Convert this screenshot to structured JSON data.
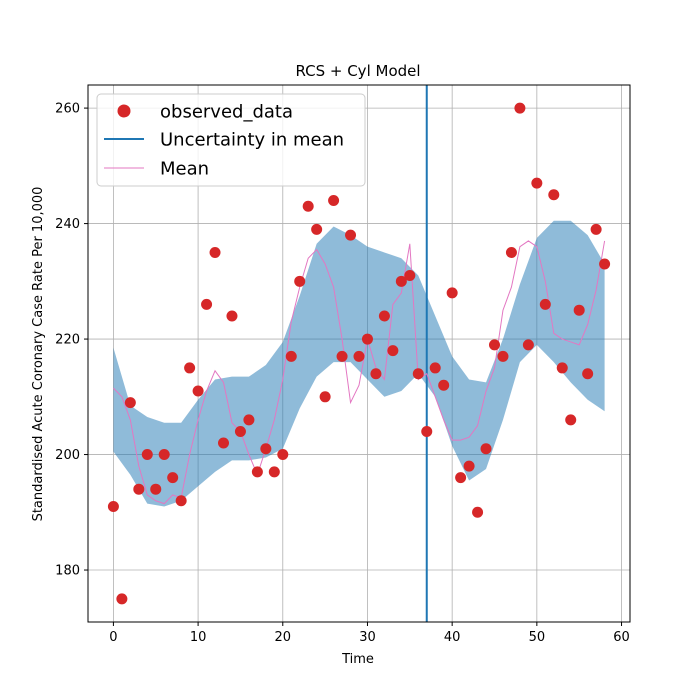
{
  "chart_data": {
    "type": "scatter",
    "title": "RCS + Cyl Model",
    "xlabel": "Time",
    "ylabel": "Standardised Acute Coronary Case Rate Per 10,000",
    "xlim": [
      -3,
      61
    ],
    "ylim": [
      171,
      264
    ],
    "xticks": [
      0,
      10,
      20,
      30,
      40,
      50,
      60
    ],
    "yticks": [
      180,
      200,
      220,
      240,
      260
    ],
    "grid": true,
    "legend_position": "top-left",
    "colors": {
      "observed": "#d62728",
      "band": "#1f77b4",
      "mean": "#e377c2",
      "vline": "#1f77b4",
      "grid": "#b0b0b0"
    },
    "vertical_line_x": 37,
    "legend": [
      {
        "label": "observed_data",
        "kind": "marker"
      },
      {
        "label": "Uncertainty in mean",
        "kind": "line"
      },
      {
        "label": "Mean",
        "kind": "thin-line"
      }
    ],
    "observed_data": {
      "x": [
        0,
        1,
        2,
        3,
        4,
        5,
        6,
        7,
        8,
        9,
        10,
        11,
        12,
        13,
        14,
        15,
        16,
        17,
        18,
        19,
        20,
        21,
        22,
        23,
        24,
        25,
        26,
        27,
        28,
        29,
        30,
        31,
        32,
        33,
        34,
        35,
        36,
        37,
        38,
        39,
        40,
        41,
        42,
        43,
        44,
        45,
        46,
        47,
        48,
        49,
        50,
        51,
        52,
        53,
        54,
        55,
        56,
        57,
        58
      ],
      "y": [
        191,
        175,
        209,
        194,
        200,
        194,
        200,
        196,
        192,
        215,
        211,
        226,
        235,
        202,
        224,
        204,
        206,
        197,
        201,
        197,
        200,
        217,
        230,
        243,
        239,
        210,
        244,
        217,
        238,
        217,
        220,
        214,
        224,
        218,
        230,
        231,
        214,
        204,
        215,
        212,
        228,
        196,
        198,
        190,
        201,
        219,
        217,
        235,
        260,
        219,
        247,
        226,
        245,
        215,
        206,
        225,
        214,
        239,
        233
      ]
    },
    "mean": {
      "x": [
        0,
        1,
        2,
        3,
        4,
        5,
        6,
        7,
        8,
        9,
        10,
        11,
        12,
        13,
        14,
        15,
        16,
        17,
        18,
        19,
        20,
        21,
        22,
        23,
        24,
        25,
        26,
        27,
        28,
        29,
        30,
        31,
        32,
        33,
        34,
        35,
        36,
        37,
        38,
        39,
        40,
        41,
        42,
        43,
        44,
        45,
        46,
        47,
        48,
        49,
        50,
        51,
        52,
        53,
        54,
        55,
        56,
        57,
        58
      ],
      "y": [
        211.5,
        210,
        206,
        198,
        193,
        192,
        191.5,
        193,
        192.5,
        200,
        206,
        211,
        214.5,
        212.5,
        205.5,
        204,
        200,
        196.5,
        201,
        206,
        213,
        223,
        229,
        234,
        235.5,
        233,
        229,
        220,
        209,
        212,
        220,
        215,
        213,
        226,
        228,
        236.5,
        213,
        214,
        210,
        206,
        202.5,
        202.5,
        203,
        205,
        211,
        215,
        225,
        229,
        236,
        237,
        236,
        230,
        221,
        220,
        219.5,
        219,
        222.5,
        228.5,
        237
      ]
    },
    "uncertainty_upper": {
      "x": [
        0,
        2,
        4,
        6,
        8,
        10,
        12,
        14,
        16,
        18,
        20,
        22,
        24,
        26,
        28,
        30,
        32,
        34,
        36,
        38,
        40,
        42,
        44,
        46,
        48,
        50,
        52,
        54,
        56,
        58
      ],
      "y": [
        218.5,
        208.5,
        206.5,
        205.5,
        205.5,
        209.5,
        213,
        213.5,
        213.5,
        215.5,
        219.5,
        227.5,
        236.5,
        239.5,
        238,
        236,
        235,
        234,
        231,
        224,
        217,
        213,
        212.5,
        220,
        229.5,
        237.5,
        240.5,
        240.5,
        238,
        233
      ]
    },
    "uncertainty_lower": {
      "x": [
        0,
        2,
        4,
        6,
        8,
        10,
        12,
        14,
        16,
        18,
        20,
        22,
        24,
        26,
        28,
        30,
        32,
        34,
        36,
        38,
        40,
        42,
        44,
        46,
        48,
        50,
        52,
        54,
        56,
        58
      ],
      "y": [
        200.5,
        196.5,
        191.5,
        191,
        192,
        194.5,
        197,
        199,
        199,
        199.5,
        201,
        208,
        213.5,
        216,
        216,
        213,
        210,
        211,
        214,
        210,
        201.5,
        195.5,
        197.5,
        206,
        216,
        219,
        216,
        212.5,
        209.5,
        207.5
      ]
    }
  }
}
